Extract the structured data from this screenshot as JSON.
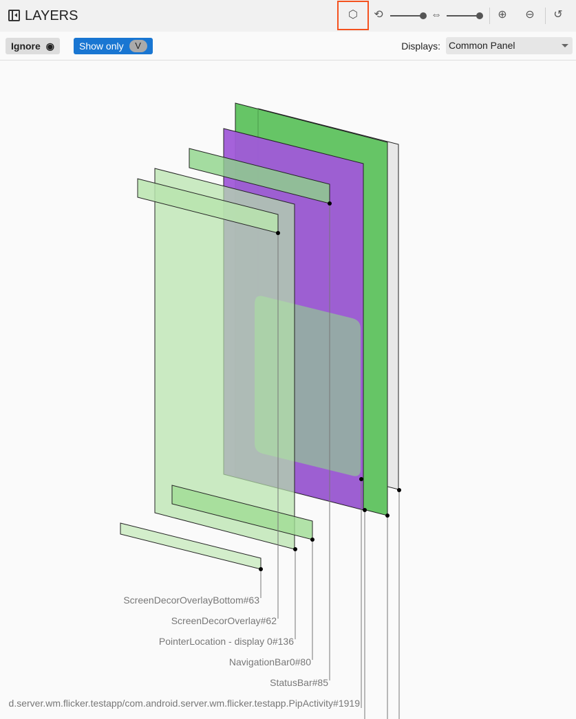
{
  "header": {
    "title": "LAYERS",
    "icons": [
      "panel-toggle-icon",
      "3d-cube-icon",
      "rotate-icon",
      "spacing-icon",
      "zoom-in-icon",
      "zoom-out-icon",
      "reset-history-icon"
    ],
    "rotation_slider": 1.0,
    "spacing_slider": 1.0
  },
  "toolbar": {
    "ignore_label": "Ignore",
    "show_only_label": "Show only",
    "show_only_key": "V",
    "displays_label": "Displays:",
    "displays_value": "Common Panel"
  },
  "layers": [
    {
      "label": "ScreenDecorOverlayBottom#63"
    },
    {
      "label": "ScreenDecorOverlay#62"
    },
    {
      "label": "PointerLocation - display 0#136"
    },
    {
      "label": "NavigationBar0#80"
    },
    {
      "label": "StatusBar#85"
    },
    {
      "label": "d.server.wm.flicker.testapp/com.android.server.wm.flicker.testapp.PipActivity#1919"
    }
  ],
  "colors": {
    "green": "#66c566",
    "purple": "#a05ad8",
    "light_green": "#b5e2aa",
    "accent": "#1976d2",
    "highlight": "#f4511e"
  }
}
